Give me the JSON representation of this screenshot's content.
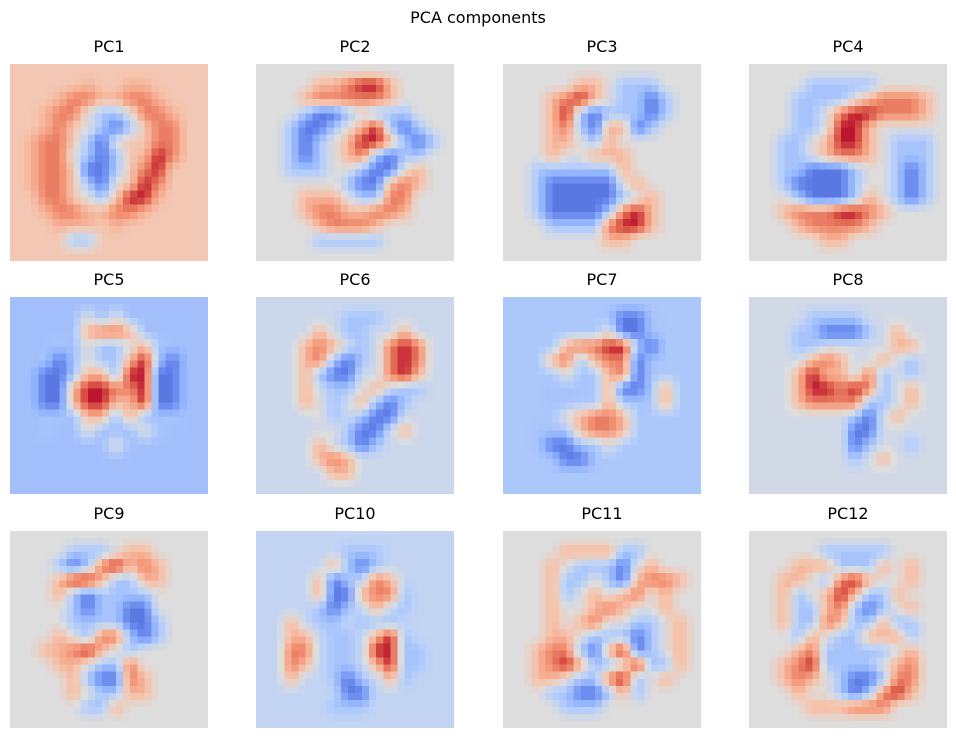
{
  "figure": {
    "suptitle": "PCA components",
    "colormap": "coolwarm"
  },
  "chart_data": {
    "type": "heatmap",
    "title": "PCA components",
    "layout": {
      "rows": 3,
      "cols": 4
    },
    "image_shape": [
      28,
      28
    ],
    "colormap": "coolwarm",
    "axes": "off",
    "panels": [
      {
        "title": "PC1",
        "bg": 0.22,
        "grid": [
          "..............",
          ".....o..oo....",
          "...oOOooOOo...",
          "..oOO_bb_OOo..",
          "..oO._bBb.OO..",
          ".oOO.bB_..OO..",
          ".oOO_bBb.oRO..",
          ".oOO.BBb.OR...",
          ".oOO.bB_.RO...",
          "..OO._b.RRo...",
          "..oOOooOOo....",
          "...ooo.o......",
          "....bb........",
          ".............."
        ]
      },
      {
        "title": "PC2",
        "bg": 0.0,
        "grid": [
          "..............",
          "....ooORRo....",
          "...oOOOOOo....",
          "...bBBb.bbb...",
          "..bBBb.oRbBb..",
          "..bBb.oRRobBb.",
          "..bBb.oObBbb..",
          "..bbb..bBB.o..",
          "......bBBoOo..",
          "...ooo.bbOO...",
          "...oOOooOOo...",
          "....oOOOo.....",
          "....bbbbb.....",
          ".............."
        ]
      },
      {
        "title": "PC3",
        "bg": 0.0,
        "grid": [
          "..............",
          ".....oo.bbb...",
          "...oORo.bbBb..",
          "...oRbBbbbBb..",
          "...oObBooBb...",
          "...oo.bo......",
          "...o..ooo.....",
          "..bbbbbbo.....",
          "..bBBBBB.o....",
          "..bBBBBBb.o...",
          "..bBBBBbORo...",
          "...bbbbORRo...",
          ".......oo.....",
          ".............."
        ]
      },
      {
        "title": "PC4",
        "bg": 0.0,
        "grid": [
          "..............",
          "....bbbbb.....",
          "...bbbb.oOOOo.",
          "...bb.ORROOOo.",
          "...bb.RRo.....",
          "..bb.oRRo.bbb.",
          "..bb.oOOo.bbb.",
          "..bbBBBb..bBb.",
          "..bBBBBb..bBb.",
          "...bBBBbo.bBb.",
          "..oOOORROo....",
          "...oOOOOo.....",
          ".....oo.......",
          ".............."
        ]
      },
      {
        "title": "PC5",
        "bg": -0.38,
        "grid": [
          "..............",
          "....._._......",
          ".....oOOo.....",
          "...b._bb_ob...",
          "..bB._bboRbB..",
          "..BB.oo.RRBB..",
          "..BBoRROORBB..",
          "..BBoRRooRBB..",
          "..bb.oo.ob.b..",
          "..b.._..._b...",
          "......._......",
          "..............",
          "..............",
          ".............."
        ]
      },
      {
        "title": "PC6",
        "bg": -0.12,
        "grid": [
          "..............",
          "......bbb.....",
          "....o.bb..o...",
          "...oOo.b.ORO..",
          "...oObBb.ORO..",
          "...obBB..ORo..",
          "...o.bb_o.bb..",
          "...o_b.obBb...",
          "...._b.bBB....",
          "....._bBB.o...",
          "....o.bBb.....",
          "....oOo.......",
          ".....oo.......",
          ".............."
        ]
      },
      {
        "title": "PC7",
        "bg": -0.32,
        "grid": [
          "..............",
          ".......bBBb...",
          "......._BBb...",
          "....oOORRbB...",
          "...oO.oOOBb...",
          "...._b.oOBb...",
          "...bbb.oBB.o..",
          "...bb..o.b.o..",
          "...._oOOo.....",
          "..bb.oOOo.....",
          "..bBBb._......",
          "...bBBb.......",
          "..............",
          ".............."
        ]
      },
      {
        "title": "PC8",
        "bg": -0.08,
        "grid": [
          "..............",
          "....bbbb......",
          "...bbBBBb.o...",
          "...bb.....oo..",
          "....oOo..o.b..",
          "...oRoo.Ob.b..",
          "...oRROROb.o..",
          "...oOOOObb.o..",
          ".......bB.o...",
          ".......BB.....",
          ".......Bb..b..",
          ".......b.o....",
          "..............",
          ".............."
        ]
      },
      {
        "title": "PC9",
        "bg": 0.0,
        "grid": [
          "..............",
          "....bbb.oo....",
          "...bBbORoOo...",
          "...oRRobboo...",
          "...obBbbbb....",
          "....bBbbBB....",
          "....bbbbBBb...",
          "...o.bOObBb...",
          "..ooORo.b.....",
          "...oo.bbO.....",
          "....obBBOo....",
          "....o.bboo....",
          ".....bbo......",
          ".............."
        ]
      },
      {
        "title": "PC10",
        "bg": -0.18,
        "grid": [
          "..............",
          "......bbb.....",
          ".....obBb.....",
          "....oBb.Oo....",
          "....oBBoOOb...",
          "....bBb.o.b...",
          "..o.bb.bbb....",
          "..oo.bb.oRb...",
          "..OO.bb.RRbb..",
          "..Oo.bb.oRbb..",
          "..o..bBb.ob...",
          "......BB......",
          ".....bbb......",
          ".............."
        ]
      },
      {
        "title": "PC11",
        "bg": 0.0,
        "grid": [
          "..............",
          "....oooobb....",
          "...o.bbbB.o...",
          "...obb.bBoOOo.",
          "...ob.o.oO.o..",
          "...o..oOo..o..",
          "...o.oO..bb.o.",
          "...oo.bbbBb.o.",
          "..oOObBoRBb.o.",
          "..oORobb.Rbbo.",
          "..oo.bbORb.o..",
          "...bbBBbob....",
          "....bbb.......",
          ".............."
        ]
      },
      {
        "title": "PC12",
        "bg": 0.0,
        "grid": [
          "..............",
          ".....bbbbb....",
          "...ooobbbo.o..",
          "..oo.bORo..o..",
          "..ob.oRobbo...",
          "..obboObBb.o..",
          "..obbOobbobb..",
          "...bo.bbooob..",
          "...oObbbbb.o..",
          "..oORbbbb.oO..",
          "..oOo.bBBbOO..",
          "...o..bBbORo..",
          "....oooOOO....",
          ".............."
        ]
      }
    ]
  }
}
